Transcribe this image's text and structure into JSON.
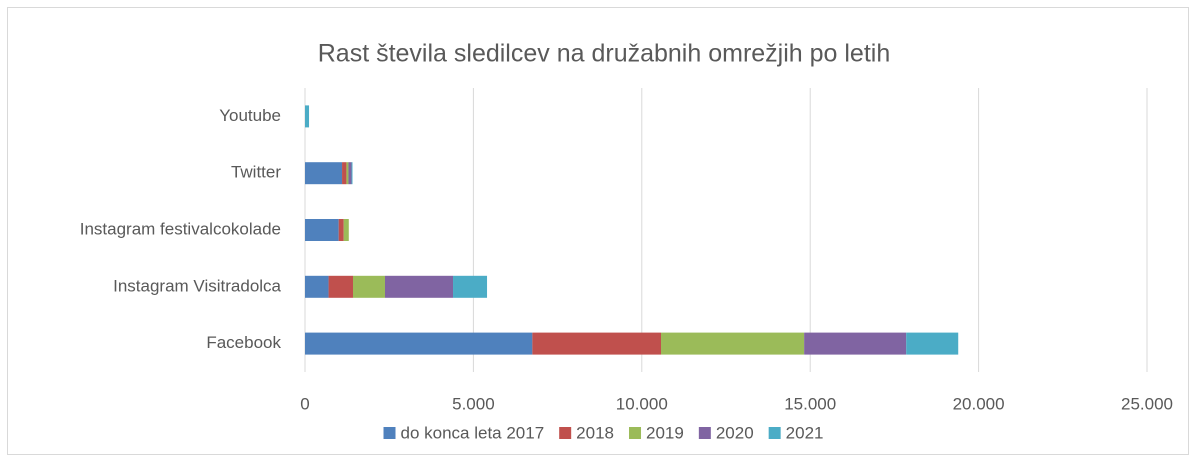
{
  "chart_data": {
    "type": "stacked-barh",
    "title": "Rast števila sledilcev na družabnih omrežjih po letih",
    "categories": [
      "Facebook",
      "Instagram Visitradolca",
      "Instagram festivalcokolade",
      "Twitter",
      "Youtube"
    ],
    "series": [
      {
        "name": "do konca leta 2017",
        "color": "#4f81bd",
        "values": [
          6750,
          700,
          1000,
          1100,
          0
        ]
      },
      {
        "name": "2018",
        "color": "#c0504d",
        "values": [
          3820,
          725,
          150,
          130,
          0
        ]
      },
      {
        "name": "2019",
        "color": "#9bbb59",
        "values": [
          4250,
          950,
          150,
          60,
          0
        ]
      },
      {
        "name": "2020",
        "color": "#8064a2",
        "values": [
          3030,
          2020,
          0,
          90,
          0
        ]
      },
      {
        "name": "2021",
        "color": "#4bacc6",
        "values": [
          1545,
          1010,
          0,
          30,
          120
        ]
      }
    ],
    "xlim": [
      0,
      25000
    ],
    "xticks": [
      0,
      {
        "value": 5000,
        "label": "5.000"
      },
      {
        "value": 10000,
        "label": "10.000"
      },
      {
        "value": 15000,
        "label": "15.000"
      },
      {
        "value": 20000,
        "label": "20.000"
      },
      {
        "value": 25000,
        "label": "25.000"
      }
    ],
    "grid": true,
    "legend": "bottom"
  }
}
